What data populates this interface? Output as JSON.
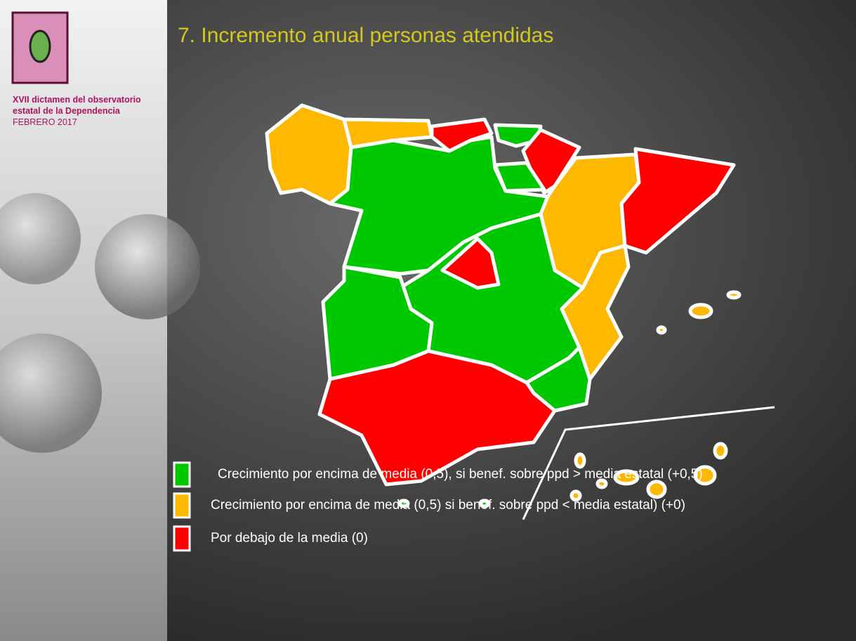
{
  "header": {
    "line1": "XVII dictamen del observatorio",
    "line2": "estatal de la Dependencia",
    "line3": "FEBRERO 2017"
  },
  "title": "7. Incremento anual personas atendidas",
  "legend": [
    {
      "label": "Crecimiento por encima de media (0,5), si benef. sobre ppd > media estatal (+0,5)",
      "color": "#00c800"
    },
    {
      "label": "Crecimiento por encima de media (0,5) si benef. sobre ppd < media estatal) (+0)",
      "color": "#ffb800"
    },
    {
      "label": "Por debajo de la media  (0)",
      "color": "#ff0000"
    }
  ]
}
